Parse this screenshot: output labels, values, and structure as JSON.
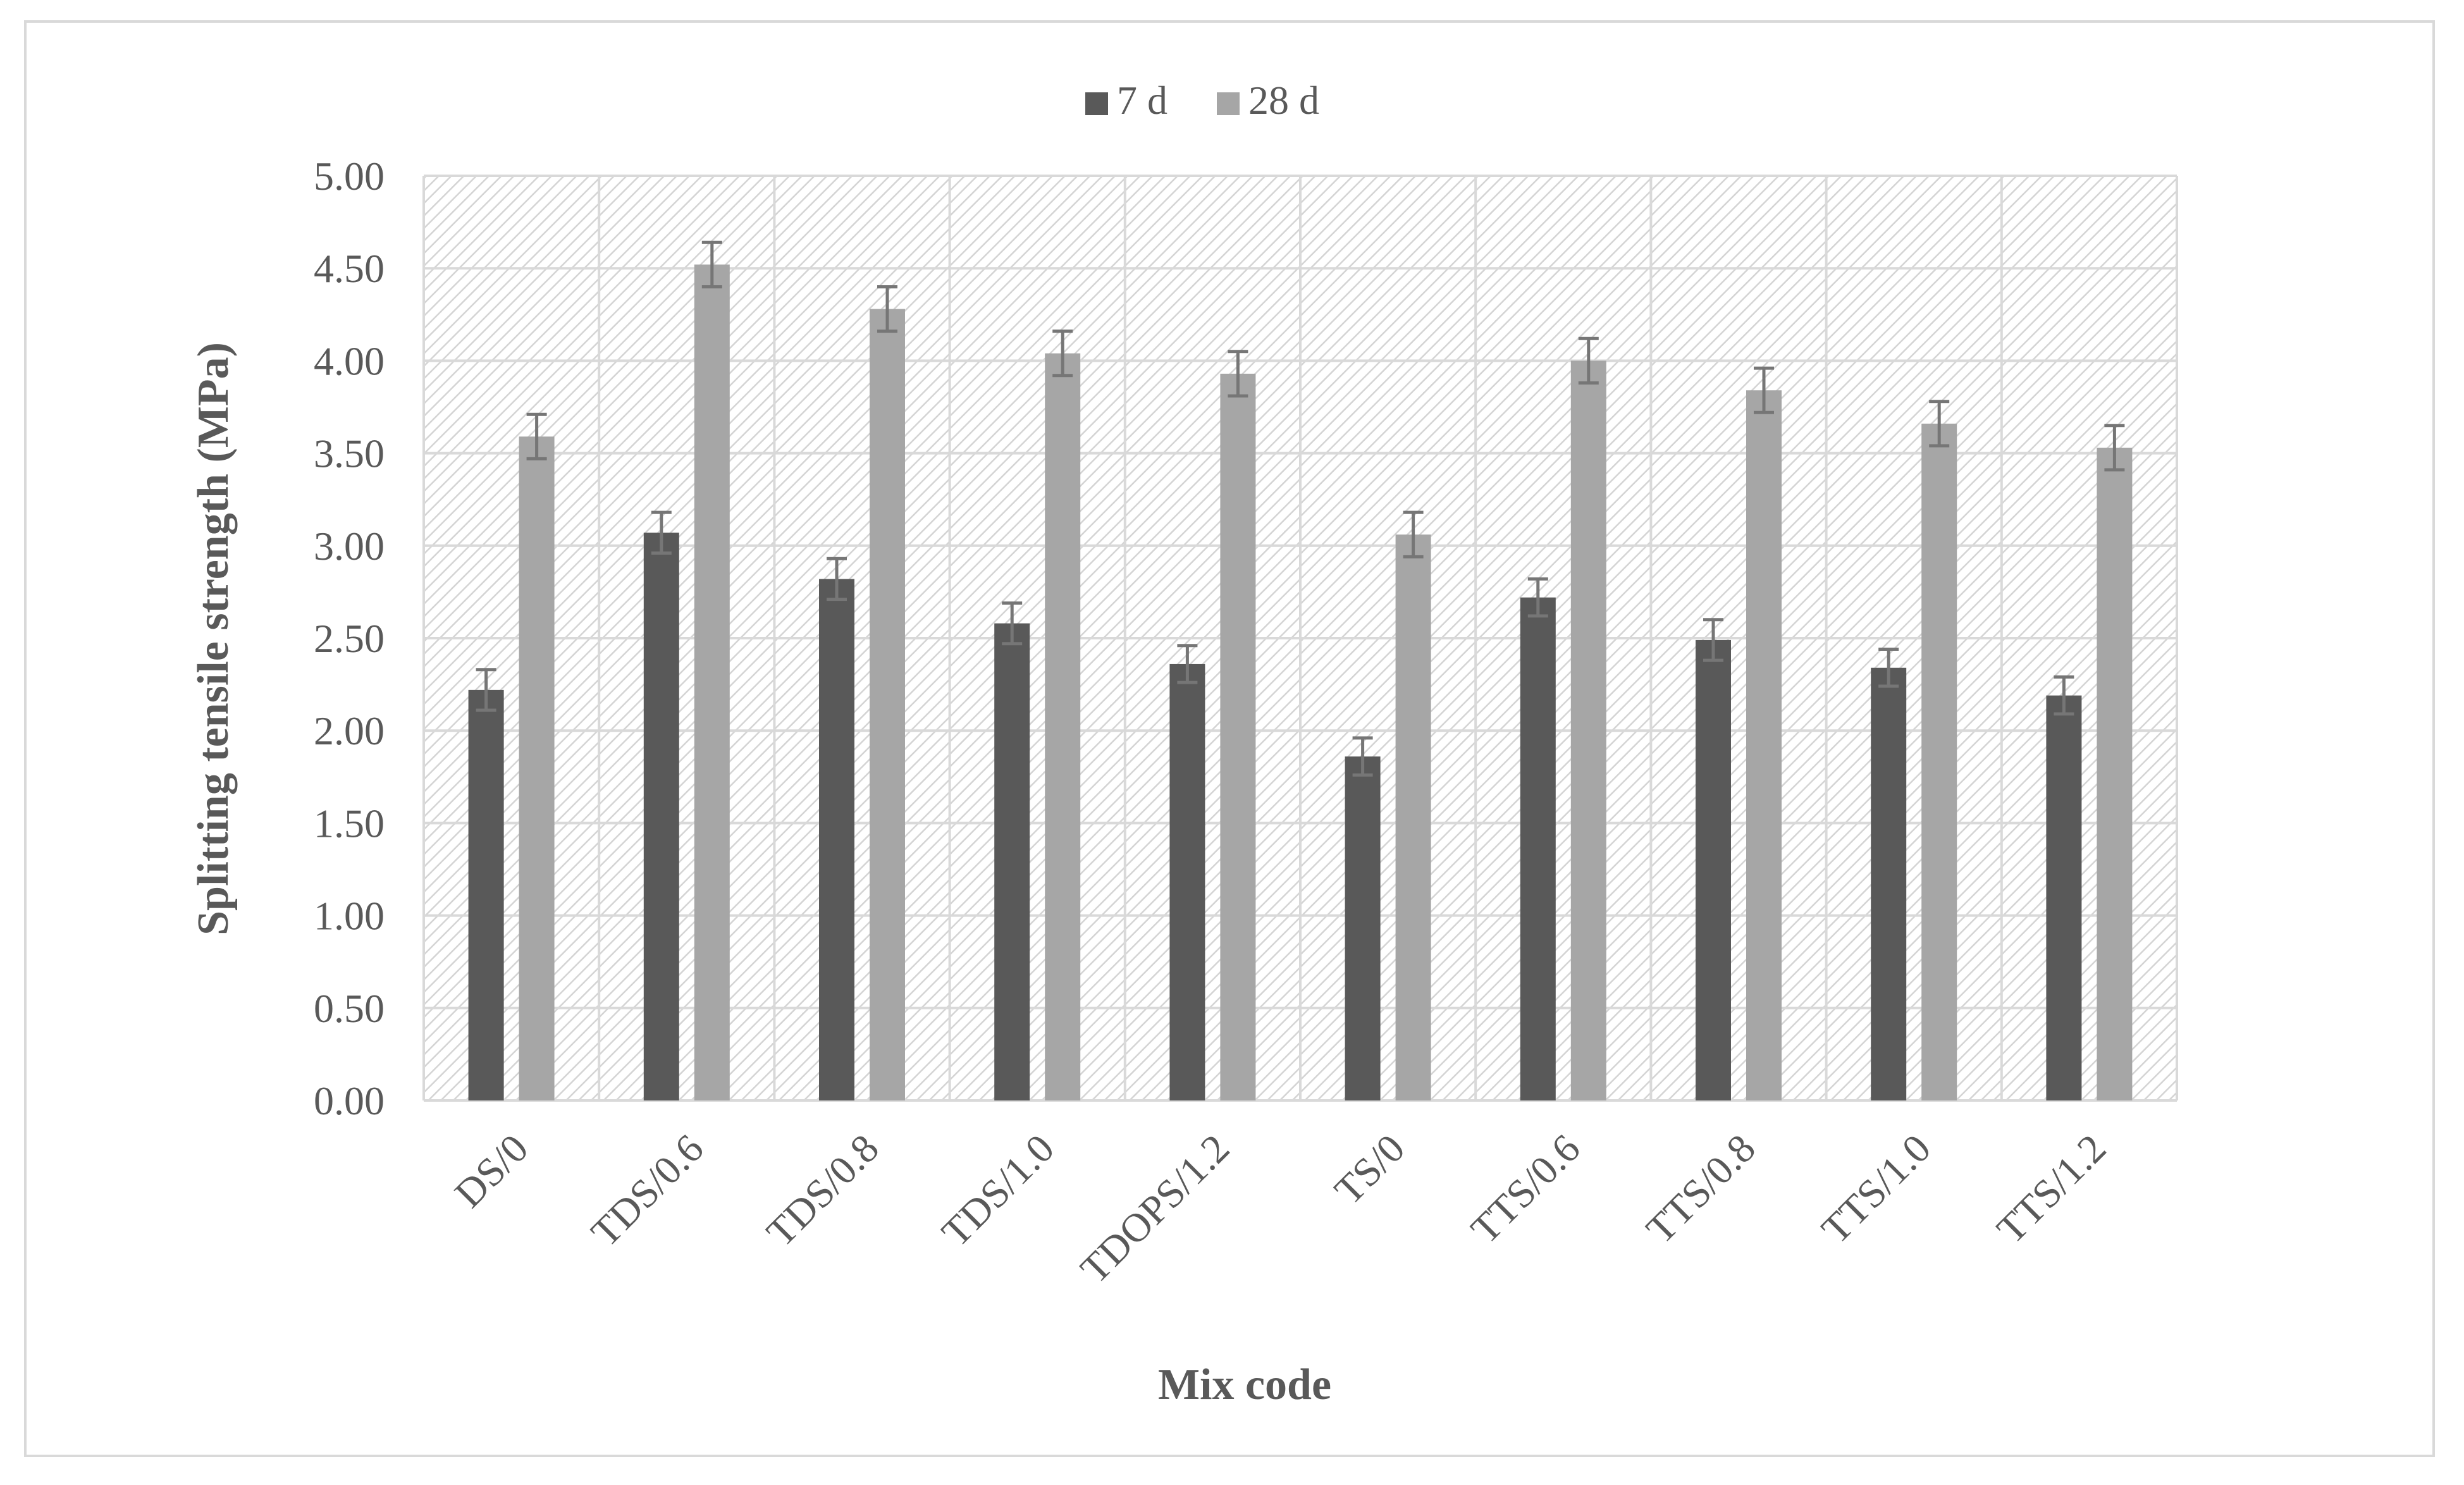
{
  "chart_data": {
    "type": "bar",
    "title": "",
    "xlabel": "Mix code",
    "ylabel": "Splitting tensile strength (MPa)",
    "ylim": [
      0,
      5
    ],
    "yticks": [
      "0.00",
      "0.50",
      "1.00",
      "1.50",
      "2.00",
      "2.50",
      "3.00",
      "3.50",
      "4.00",
      "4.50",
      "5.00"
    ],
    "categories": [
      "DS/0",
      "TDS/0.6",
      "TDS/0.8",
      "TDS/1.0",
      "TDOPS/1.2",
      "TS/0",
      "TTS/0.6",
      "TTS/0.8",
      "TTS/1.0",
      "TTS/1.2"
    ],
    "series": [
      {
        "name": "7 d",
        "color": "#595959",
        "values": [
          2.22,
          3.07,
          2.82,
          2.58,
          2.36,
          1.86,
          2.72,
          2.49,
          2.34,
          2.19
        ],
        "errors": [
          0.11,
          0.11,
          0.11,
          0.11,
          0.1,
          0.1,
          0.1,
          0.11,
          0.1,
          0.1
        ]
      },
      {
        "name": "28 d",
        "color": "#a6a6a6",
        "values": [
          3.59,
          4.52,
          4.28,
          4.04,
          3.93,
          3.06,
          4.0,
          3.84,
          3.66,
          3.53
        ],
        "errors": [
          0.12,
          0.12,
          0.12,
          0.12,
          0.12,
          0.12,
          0.12,
          0.12,
          0.12,
          0.12
        ]
      }
    ],
    "legend_position": "top-center",
    "grid": true,
    "error_bars": true,
    "plot_background": "hatched",
    "tick_label_rotation": -45
  }
}
